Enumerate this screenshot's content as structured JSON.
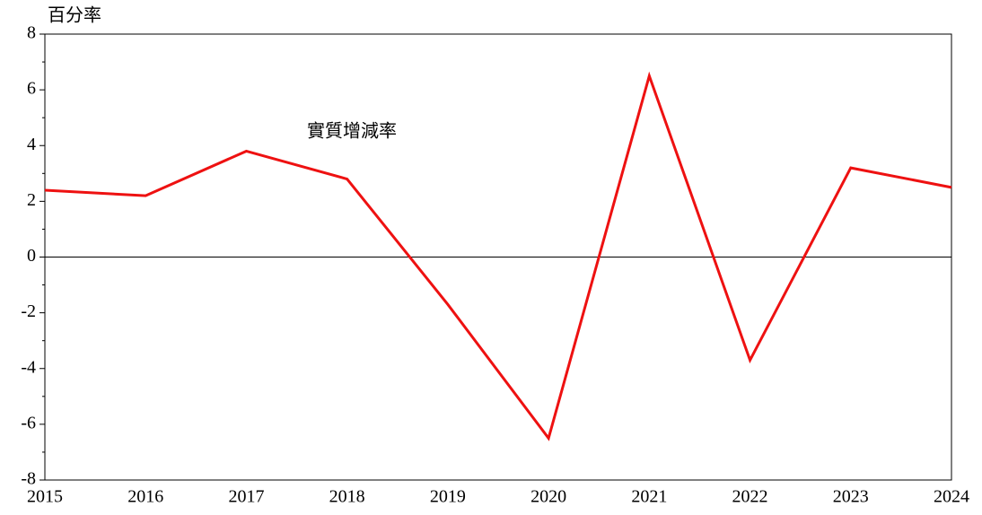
{
  "chart_data": {
    "type": "line",
    "y_label": "百分率",
    "categories": [
      "2015",
      "2016",
      "2017",
      "2018",
      "2019",
      "2020",
      "2021",
      "2022",
      "2023",
      "2024"
    ],
    "series": [
      {
        "name": "實質增減率",
        "color": "#ee1111",
        "values": [
          2.4,
          2.2,
          3.8,
          2.8,
          -1.7,
          -6.5,
          6.5,
          -3.7,
          3.2,
          2.5
        ]
      }
    ],
    "ylim": [
      -8,
      8
    ],
    "yticks": [
      -8,
      -6,
      -4,
      -2,
      0,
      2,
      4,
      6,
      8
    ],
    "grid": false
  }
}
